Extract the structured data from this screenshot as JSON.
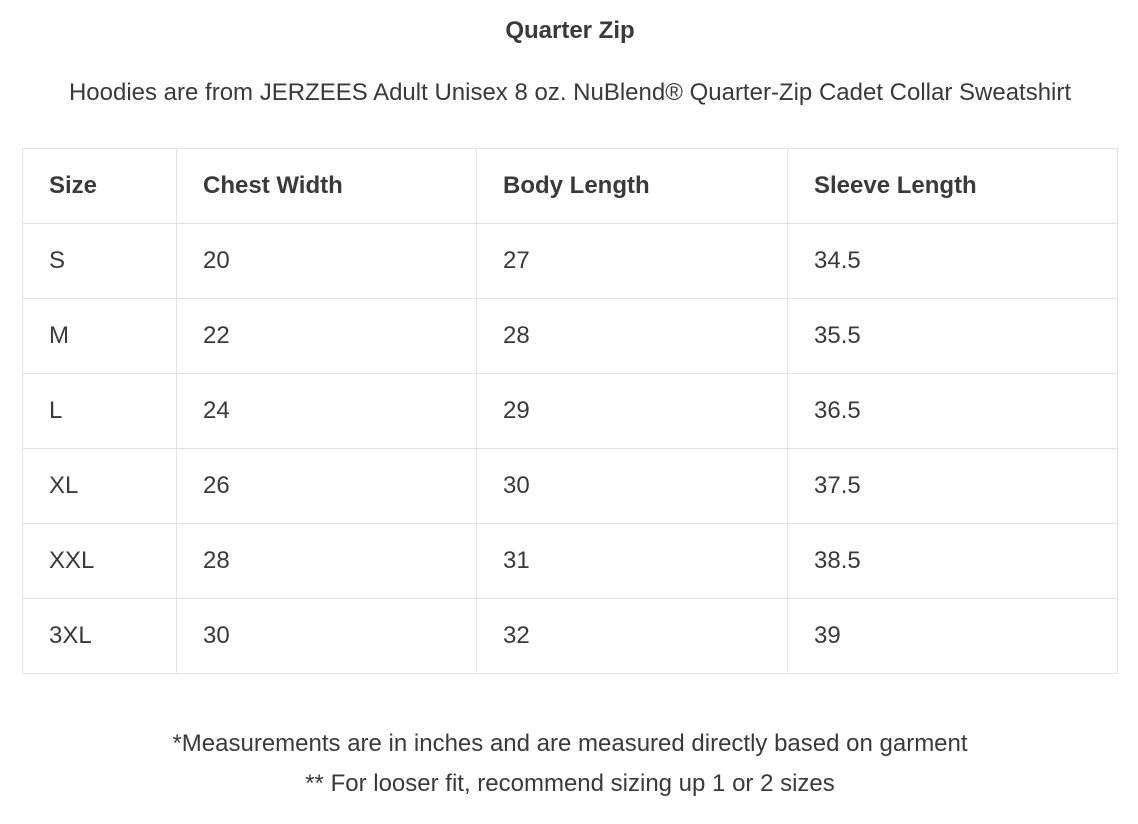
{
  "title": "Quarter Zip",
  "subtitle": "Hoodies are from JERZEES Adult Unisex 8 oz. NuBlend® Quarter-Zip Cadet Collar Sweatshirt",
  "table": {
    "headers": [
      "Size",
      "Chest Width",
      "Body Length",
      "Sleeve Length"
    ],
    "rows": [
      [
        "S",
        "20",
        "27",
        "34.5"
      ],
      [
        "M",
        "22",
        "28",
        "35.5"
      ],
      [
        "L",
        "24",
        "29",
        "36.5"
      ],
      [
        "XL",
        "26",
        "30",
        "37.5"
      ],
      [
        "XXL",
        "28",
        "31",
        "38.5"
      ],
      [
        "3XL",
        "30",
        "32",
        "39"
      ]
    ]
  },
  "notes": [
    "*Measurements are in inches and are measured directly based on garment",
    "** For looser fit, recommend sizing up 1 or 2 sizes"
  ]
}
